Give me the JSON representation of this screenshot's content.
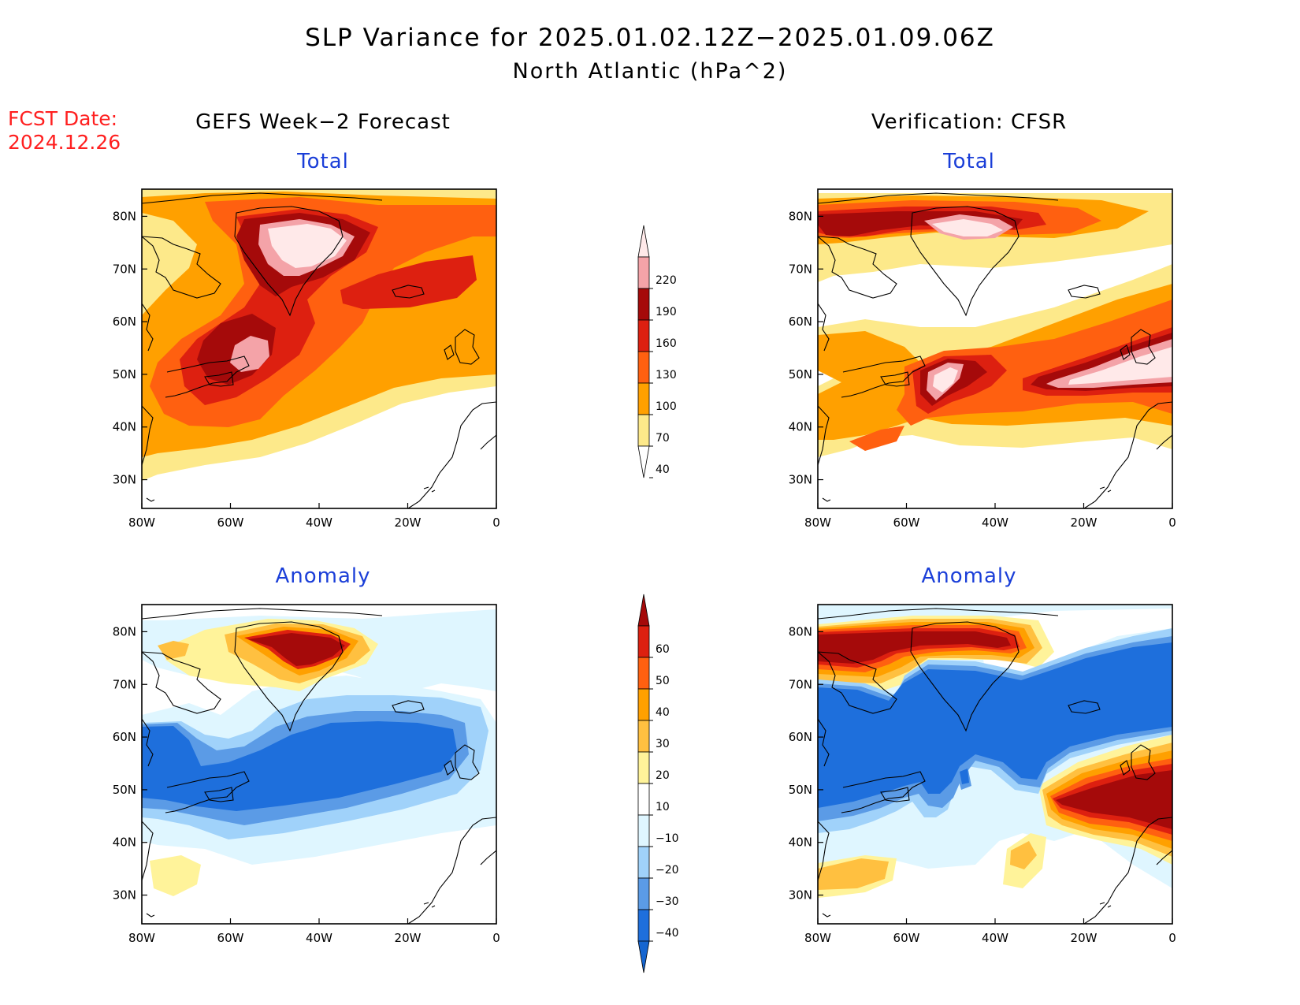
{
  "title": {
    "line1": "SLP Variance for 2025.01.02.12Z−2025.01.09.06Z",
    "line2": "North Atlantic (hPa^2)"
  },
  "fcst_date": {
    "label": "FCST Date:",
    "value": "2024.12.26"
  },
  "columns": {
    "left": "GEFS Week−2 Forecast",
    "right": "Verification: CFSR"
  },
  "panels": {
    "fcst_total": {
      "title": "Total"
    },
    "obs_total": {
      "title": "Total"
    },
    "fcst_anom": {
      "title": "Anomaly"
    },
    "obs_anom": {
      "title": "Anomaly"
    }
  },
  "axes": {
    "lat_labels": [
      "80N",
      "70N",
      "60N",
      "50N",
      "40N",
      "30N"
    ],
    "lon_labels": [
      "80W",
      "60W",
      "40W",
      "20W",
      "0"
    ]
  },
  "colorbars": {
    "total": {
      "levels": [
        "220",
        "190",
        "160",
        "130",
        "100",
        "70",
        "40"
      ],
      "colors": [
        "#ffe9e9",
        "#f4a3a8",
        "#a50a0a",
        "#dd2010",
        "#ff6010",
        "#ffa000",
        "#fde98a",
        "#ffffff"
      ]
    },
    "anomaly": {
      "levels": [
        "60",
        "50",
        "40",
        "30",
        "20",
        "10",
        "−10",
        "−20",
        "−30",
        "−40"
      ],
      "colors": [
        "#a50a0a",
        "#dd2010",
        "#ff6010",
        "#ffa000",
        "#ffc040",
        "#fff39a",
        "#ffffff",
        "#dff6ff",
        "#a0d2fa",
        "#5b9be6",
        "#1e6fdc",
        "#1565d0"
      ]
    }
  }
}
